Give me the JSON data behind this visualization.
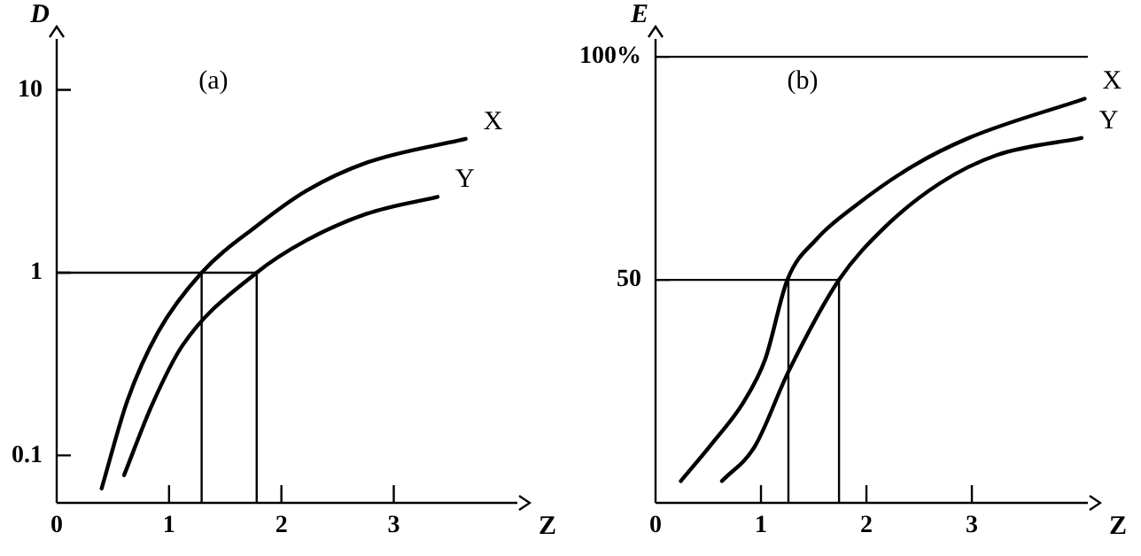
{
  "chart_data": [
    {
      "type": "line",
      "xlabel": "Z",
      "ylabel": "D",
      "annotations": [
        "(a)"
      ],
      "log": "y",
      "xlim": [
        0,
        4.1
      ],
      "ylim": [
        0.055,
        19
      ],
      "xticks": [
        0,
        1,
        2,
        3
      ],
      "yticks": [
        0.1,
        1,
        10
      ],
      "legend": false,
      "grid": false,
      "marker": "none",
      "line_style": "solid",
      "ref_lines": [
        {
          "axis": "y",
          "value": 1
        },
        {
          "axis": "x",
          "value": 1.29
        },
        {
          "axis": "x",
          "value": 1.78
        }
      ],
      "series": [
        {
          "name": "X",
          "color": "#000000",
          "x": [
            0.4,
            0.63,
            0.9,
            1.29,
            1.78,
            2.22,
            2.76,
            3.64
          ],
          "values": [
            0.066,
            0.2,
            0.47,
            1,
            1.8,
            2.8,
            4,
            5.4
          ]
        },
        {
          "name": "Y",
          "color": "#000000",
          "x": [
            0.6,
            0.85,
            1.12,
            1.78,
            2.22,
            2.76,
            3.39
          ],
          "values": [
            0.078,
            0.19,
            0.4,
            1,
            1.5,
            2.1,
            2.6
          ]
        }
      ]
    },
    {
      "type": "line",
      "xlabel": "Z",
      "ylabel": "E",
      "annotations": [
        "(b)"
      ],
      "xlim": [
        0,
        4.1
      ],
      "ylim": [
        0,
        104
      ],
      "xticks": [
        0,
        1,
        2,
        3
      ],
      "yticks": [
        50,
        {
          "value": 100,
          "label": "100%"
        }
      ],
      "legend": false,
      "grid": false,
      "marker": "none",
      "line_style": "solid",
      "ref_lines": [
        {
          "axis": "y",
          "value": 100
        },
        {
          "axis": "y",
          "value": 50
        },
        {
          "axis": "x",
          "value": 1.26
        },
        {
          "axis": "x",
          "value": 1.74
        }
      ],
      "series": [
        {
          "name": "X",
          "color": "#000000",
          "x": [
            0.24,
            0.56,
            0.83,
            1.04,
            1.25,
            1.53,
            1.9,
            2.44,
            2.97,
            4.07
          ],
          "values": [
            4.9,
            14,
            22.4,
            32.2,
            50,
            59.2,
            66.7,
            75.5,
            81.8,
            90.6
          ]
        },
        {
          "name": "Y",
          "color": "#000000",
          "x": [
            0.63,
            0.94,
            1.26,
            1.74,
            2.17,
            2.7,
            3.24,
            4.04
          ],
          "values": [
            4.9,
            12.6,
            29.4,
            50,
            61.7,
            71.7,
            78,
            81.8
          ]
        }
      ]
    }
  ]
}
